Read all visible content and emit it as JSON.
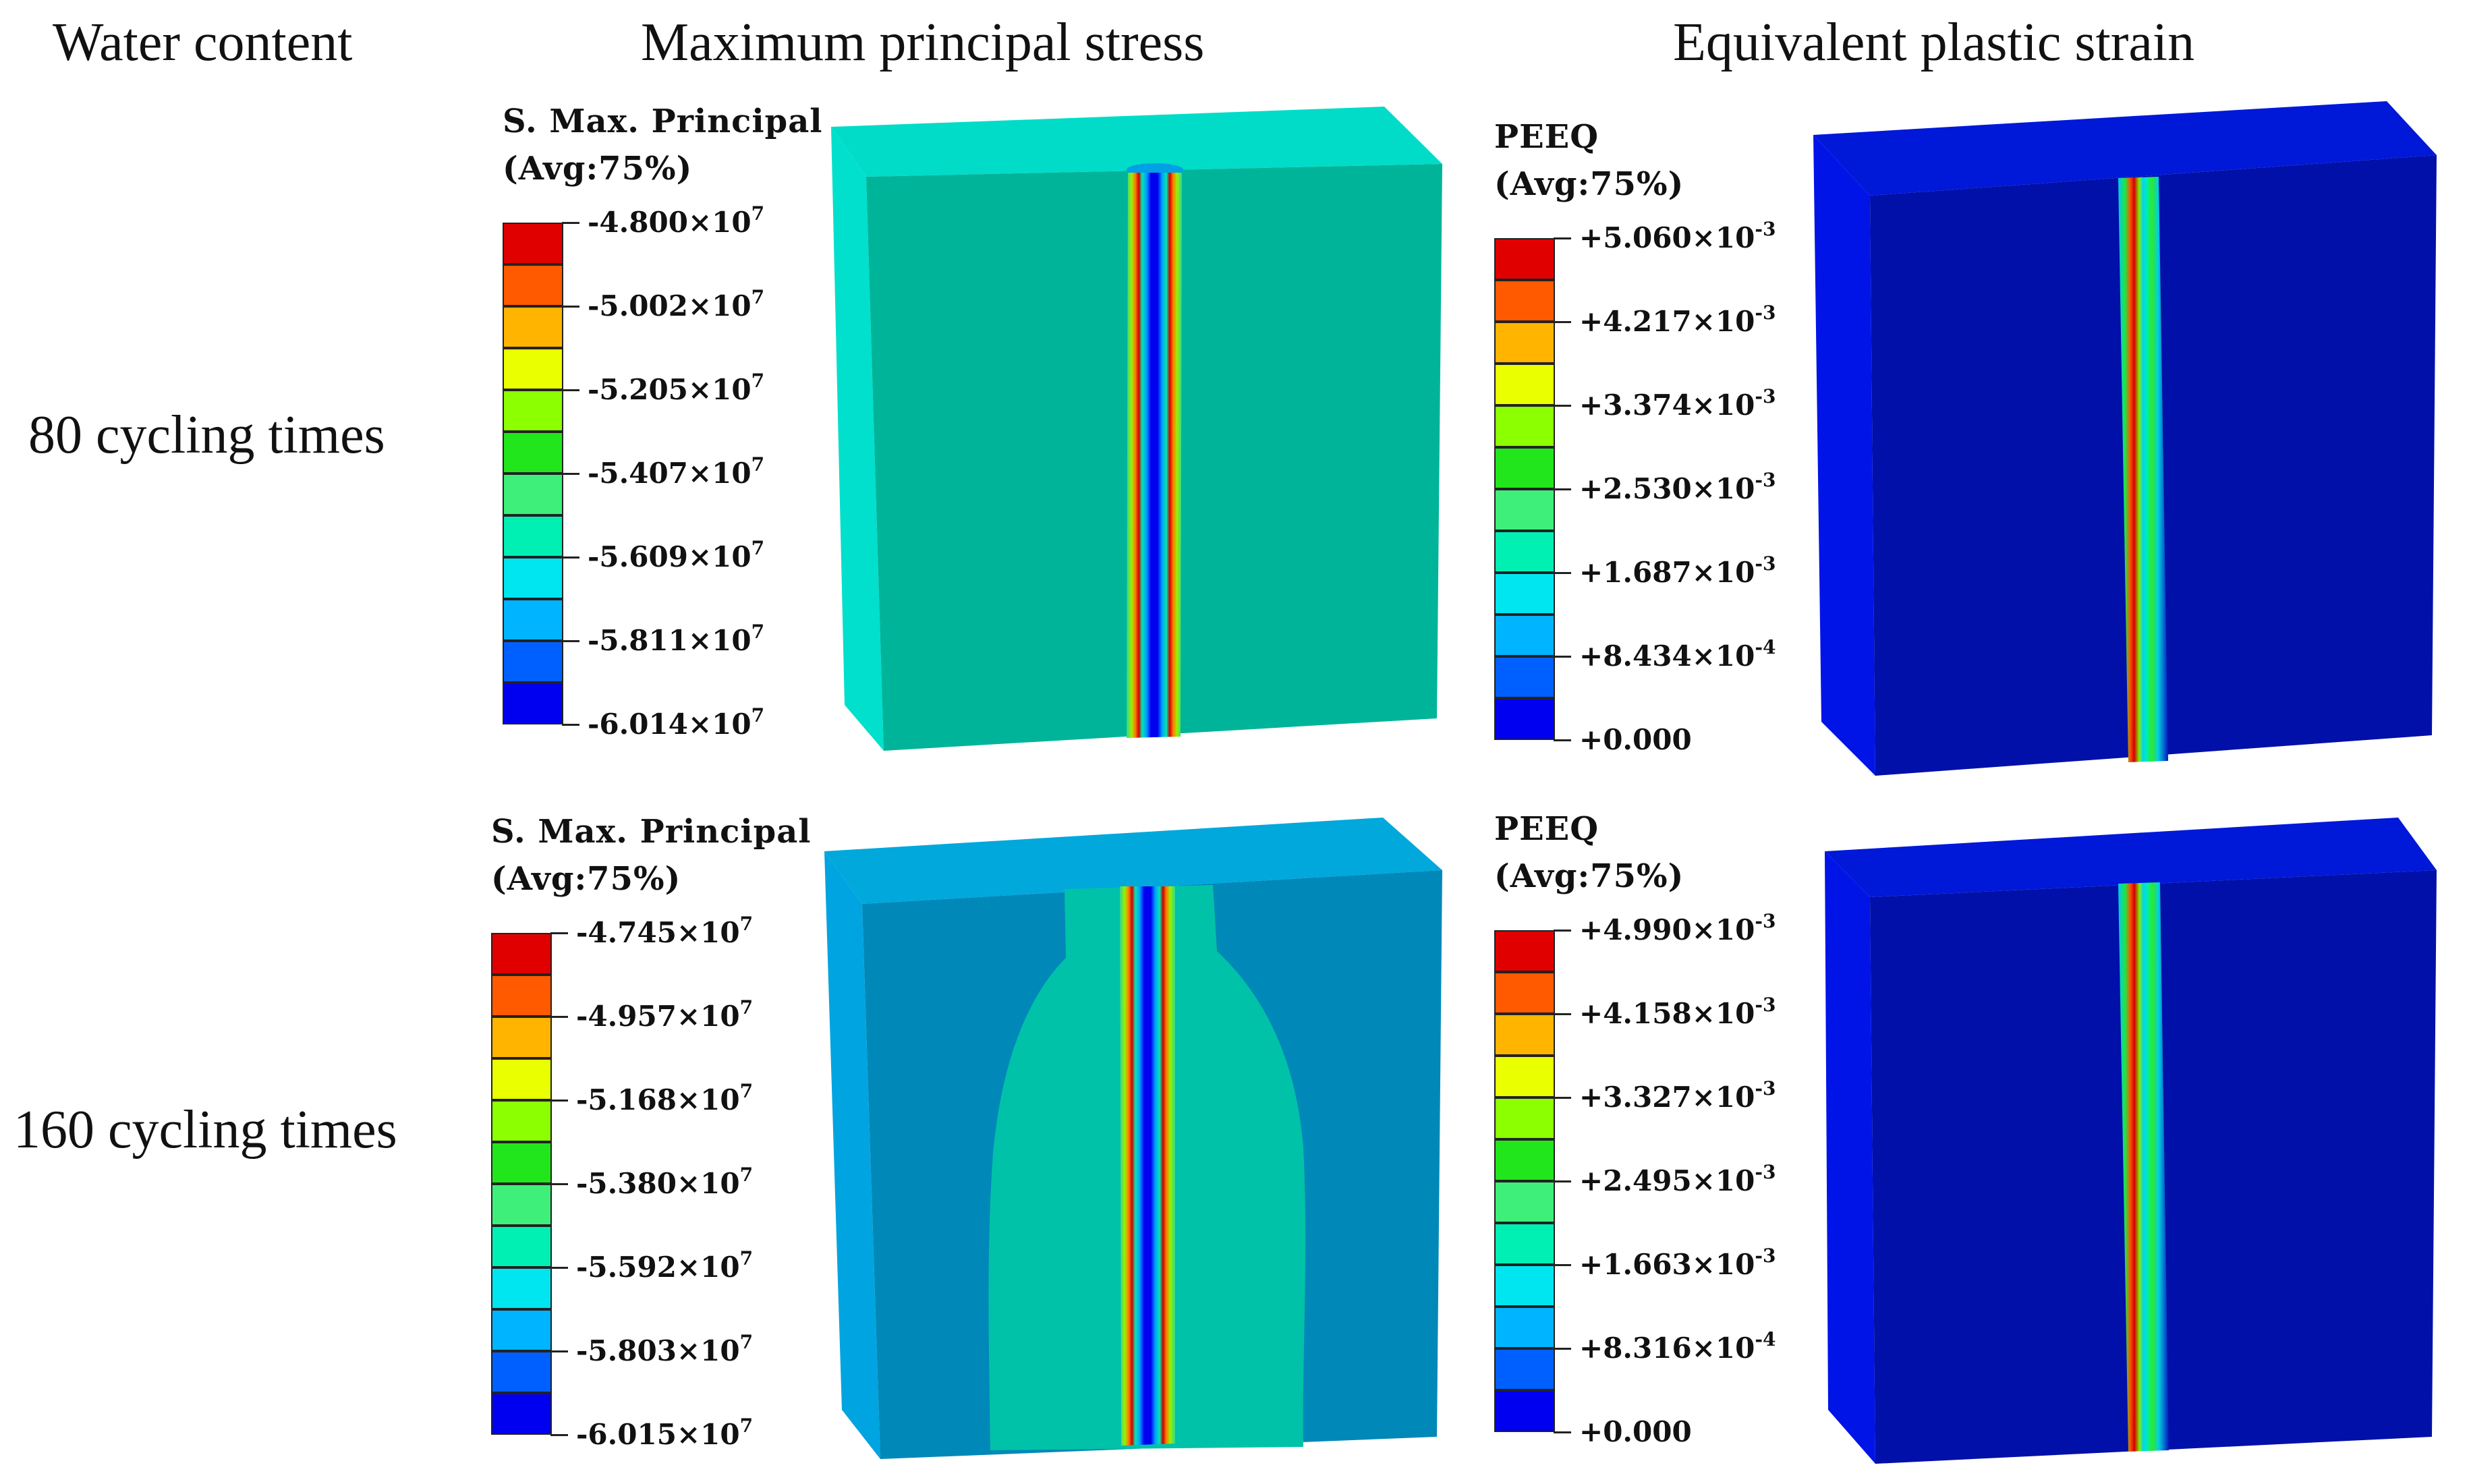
{
  "headers": {
    "col1": "Water content",
    "col2": "Maximum principal stress",
    "col3": "Equivalent plastic strain"
  },
  "rows": [
    {
      "label": "80 cycling times"
    },
    {
      "label": "160 cycling times"
    }
  ],
  "legend_palette": [
    "#e00000",
    "#ff5a00",
    "#ffb400",
    "#eaff00",
    "#8cff00",
    "#22e61c",
    "#3ef07a",
    "#00f0b4",
    "#00e6f0",
    "#00b4ff",
    "#0060ff",
    "#0000f0"
  ],
  "legends": [
    {
      "id": "stress-80",
      "title": "S. Max. Principal",
      "subtitle": "(Avg:75%)",
      "ticks": [
        {
          "mant": "-4.800×10",
          "exp": "7"
        },
        {
          "mant": "-5.002×10",
          "exp": "7"
        },
        {
          "mant": "-5.205×10",
          "exp": "7"
        },
        {
          "mant": "-5.407×10",
          "exp": "7"
        },
        {
          "mant": "-5.609×10",
          "exp": "7"
        },
        {
          "mant": "-5.811×10",
          "exp": "7"
        },
        {
          "mant": "-6.014×10",
          "exp": "7"
        }
      ]
    },
    {
      "id": "peeq-80",
      "title": "PEEQ",
      "subtitle": "(Avg:75%)",
      "ticks": [
        {
          "mant": "+5.060×10",
          "exp": "-3"
        },
        {
          "mant": "+4.217×10",
          "exp": "-3"
        },
        {
          "mant": "+3.374×10",
          "exp": "-3"
        },
        {
          "mant": "+2.530×10",
          "exp": "-3"
        },
        {
          "mant": "+1.687×10",
          "exp": "-3"
        },
        {
          "mant": "+8.434×10",
          "exp": "-4"
        },
        {
          "mant": "+0.000",
          "exp": ""
        }
      ]
    },
    {
      "id": "stress-160",
      "title": "S. Max. Principal",
      "subtitle": "(Avg:75%)",
      "ticks": [
        {
          "mant": "-4.745×10",
          "exp": "7"
        },
        {
          "mant": "-4.957×10",
          "exp": "7"
        },
        {
          "mant": "-5.168×10",
          "exp": "7"
        },
        {
          "mant": "-5.380×10",
          "exp": "7"
        },
        {
          "mant": "-5.592×10",
          "exp": "7"
        },
        {
          "mant": "-5.803×10",
          "exp": "7"
        },
        {
          "mant": "-6.015×10",
          "exp": "7"
        }
      ]
    },
    {
      "id": "peeq-160",
      "title": "PEEQ",
      "subtitle": "(Avg:75%)",
      "ticks": [
        {
          "mant": "+4.990×10",
          "exp": "-3"
        },
        {
          "mant": "+4.158×10",
          "exp": "-3"
        },
        {
          "mant": "+3.327×10",
          "exp": "-3"
        },
        {
          "mant": "+2.495×10",
          "exp": "-3"
        },
        {
          "mant": "+1.663×10",
          "exp": "-3"
        },
        {
          "mant": "+8.316×10",
          "exp": "-4"
        },
        {
          "mant": "+0.000",
          "exp": ""
        }
      ]
    }
  ],
  "models": {
    "stress_80": {
      "face": "#00b49a",
      "top": "#00dcc8",
      "side": "#00e0cc"
    },
    "stress_160": {
      "face": "#0088b8",
      "top": "#00a8dc",
      "side": "#00a4e0",
      "zone": "#00c2a8"
    },
    "peeq": {
      "face": "#0010a8",
      "top": "#0018d8",
      "side": "#0014e8"
    }
  }
}
